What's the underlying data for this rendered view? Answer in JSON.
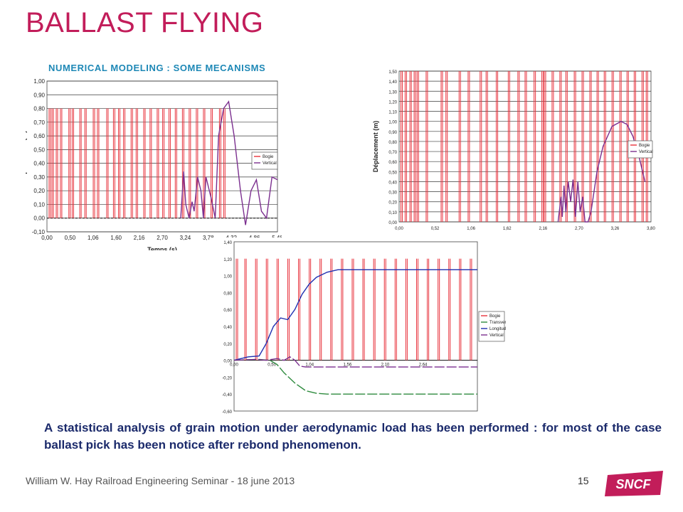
{
  "slide": {
    "title": "BALLAST FLYING",
    "subtitle": "NUMERICAL  MODELING  :  SOME MECANISMS",
    "body": "A statistical analysis of grain motion under aerodynamic load has been performed : for most of the case ballast pick has been notice after rebond phenomenon.",
    "footer": "William W. Hay Railroad Engineering Seminar - 18 june 2013",
    "page_number": "15",
    "logo_text": "SNCF"
  },
  "colors": {
    "title": "#c21d5a",
    "subtitle": "#1e88b6",
    "body": "#1b2a6b",
    "bogie": "#e8323c",
    "vertical": "#7b2f8f",
    "transversal": "#2e8b3e",
    "longitudinal": "#1f2fb0",
    "logo": "#c21d5a"
  },
  "chart_data": [
    {
      "type": "line",
      "xlabel": "Temps (s)",
      "ylabel": "Déplacement (m)",
      "ylim": [
        -0.1,
        1.0
      ],
      "yticks": [
        "1,00",
        "0,90",
        "0,80",
        "0,70",
        "0,60",
        "0,50",
        "0,40",
        "0,30",
        "0,20",
        "0,10",
        "0,00",
        "-0,10"
      ],
      "xticks": [
        "0,00",
        "0,50",
        "1,06",
        "1,60",
        "2,16",
        "2,70",
        "3,24",
        "3,78",
        "4,32",
        "4,86",
        "5,48"
      ],
      "xlim": [
        0,
        5.48
      ],
      "grid": true,
      "legend_position": "right",
      "series": [
        {
          "name": "Bogie",
          "kind": "pulses",
          "height": 0.8,
          "pulses": [
            0.05,
            0.12,
            0.22,
            0.32,
            0.52,
            0.6,
            0.78,
            0.9,
            1.1,
            1.2,
            1.42,
            1.58,
            1.7,
            1.82,
            2.0,
            2.12,
            2.3,
            2.45,
            2.62,
            2.75,
            2.9,
            3.05,
            3.22,
            3.38,
            3.55,
            3.72,
            3.9,
            4.1,
            4.2
          ]
        },
        {
          "name": "Vertical",
          "x": [
            3.18,
            3.25,
            3.3,
            3.38,
            3.45,
            3.5,
            3.58,
            3.66,
            3.72,
            3.78,
            3.9,
            4.0,
            4.08,
            4.2,
            4.32,
            4.45,
            4.6,
            4.72,
            4.85,
            4.98,
            5.1,
            5.22,
            5.35,
            5.48
          ],
          "y": [
            0.0,
            0.34,
            0.1,
            0.0,
            0.12,
            0.05,
            0.3,
            0.2,
            0.0,
            0.3,
            0.15,
            0.0,
            0.6,
            0.8,
            0.85,
            0.6,
            0.2,
            -0.05,
            0.2,
            0.28,
            0.05,
            0.0,
            0.3,
            0.28
          ]
        }
      ]
    },
    {
      "type": "line",
      "xlabel": "",
      "ylabel": "Déplacement (m)",
      "ylim": [
        0,
        1.5
      ],
      "yticks": [
        "1,50",
        "1,40",
        "1,30",
        "1,20",
        "1,10",
        "1,00",
        "0,90",
        "0,80",
        "0,70",
        "0,60",
        "0,50",
        "0,40",
        "0,30",
        "0,20",
        "0,10",
        "0,00"
      ],
      "xticks": [
        "0,00",
        "0,52",
        "1,06",
        "1,62",
        "2,16",
        "2,70",
        "3,26",
        "3,80"
      ],
      "xlim": [
        0,
        4.2
      ],
      "grid": true,
      "legend_position": "right",
      "series": [
        {
          "name": "Bogie",
          "kind": "pulses",
          "height": 1.5,
          "pulses": [
            0.03,
            0.1,
            0.18,
            0.25,
            0.3,
            0.45,
            0.7,
            0.78,
            1.0,
            1.15,
            1.35,
            1.45,
            1.62,
            1.82,
            1.98,
            2.1,
            2.25,
            2.38,
            2.42,
            2.55,
            2.68,
            2.78,
            2.92,
            3.05,
            3.18,
            3.3,
            3.42,
            3.55,
            3.68,
            3.8,
            3.92,
            4.05,
            4.12
          ]
        },
        {
          "name": "Vertical",
          "x": [
            2.65,
            2.7,
            2.72,
            2.75,
            2.78,
            2.82,
            2.86,
            2.9,
            2.94,
            2.98,
            3.02,
            3.06,
            3.1,
            3.15,
            3.2,
            3.25,
            3.3,
            3.4,
            3.55,
            3.7,
            3.8,
            3.9,
            4.0,
            4.1
          ],
          "y": [
            0.0,
            0.25,
            0.05,
            0.36,
            0.1,
            0.4,
            0.2,
            0.42,
            0.05,
            0.4,
            0.1,
            0.25,
            0.0,
            0.0,
            0.1,
            0.3,
            0.5,
            0.75,
            0.95,
            1.0,
            0.97,
            0.85,
            0.65,
            0.4
          ]
        }
      ]
    },
    {
      "type": "line",
      "xlabel": "",
      "ylabel": "",
      "ylim": [
        -0.6,
        1.4
      ],
      "yticks": [
        "1,40",
        "1,20",
        "1,00",
        "0,80",
        "0,60",
        "0,40",
        "0,20",
        "0,00",
        "-0,20",
        "-0,40",
        "-0,60"
      ],
      "xticks": [
        "0,00",
        "0,50",
        "1,04",
        "1,56",
        "2,10",
        "2,64"
      ],
      "xlim": [
        0,
        3.4
      ],
      "grid": false,
      "legend_position": "right",
      "series": [
        {
          "name": "Bogie",
          "kind": "pulses",
          "height": 1.2,
          "pulses": [
            0.03,
            0.15,
            0.3,
            0.45,
            0.6,
            0.75,
            0.9,
            1.05,
            1.2,
            1.35,
            1.5,
            1.65,
            1.8,
            1.95,
            2.1,
            2.25,
            2.4,
            2.55,
            2.7,
            2.85,
            3.0,
            3.15,
            3.3
          ]
        },
        {
          "name": "Transversal",
          "x": [
            0.0,
            0.35,
            0.5,
            0.6,
            0.7,
            0.85,
            1.0,
            1.15,
            1.3,
            1.5,
            2.0,
            2.5,
            3.0,
            3.4
          ],
          "y": [
            0.0,
            0.01,
            0.0,
            -0.05,
            -0.15,
            -0.27,
            -0.36,
            -0.39,
            -0.4,
            -0.4,
            -0.4,
            -0.4,
            -0.4,
            -0.4
          ]
        },
        {
          "name": "Longitudinal",
          "x": [
            0.0,
            0.2,
            0.35,
            0.45,
            0.55,
            0.65,
            0.75,
            0.85,
            0.95,
            1.05,
            1.15,
            1.3,
            1.45,
            1.6,
            2.0,
            2.5,
            3.0,
            3.4
          ],
          "y": [
            0.0,
            0.04,
            0.05,
            0.2,
            0.4,
            0.5,
            0.48,
            0.6,
            0.78,
            0.9,
            0.98,
            1.04,
            1.07,
            1.07,
            1.07,
            1.07,
            1.07,
            1.07
          ]
        },
        {
          "name": "Vertical",
          "x": [
            0.0,
            0.3,
            0.45,
            0.6,
            0.7,
            0.78,
            0.85,
            0.92,
            1.0,
            1.1,
            1.3,
            2.0,
            3.0,
            3.4
          ],
          "y": [
            0.0,
            0.01,
            0.0,
            0.02,
            0.0,
            0.04,
            0.0,
            -0.07,
            -0.08,
            -0.08,
            -0.08,
            -0.08,
            -0.08,
            -0.08
          ]
        }
      ]
    }
  ]
}
